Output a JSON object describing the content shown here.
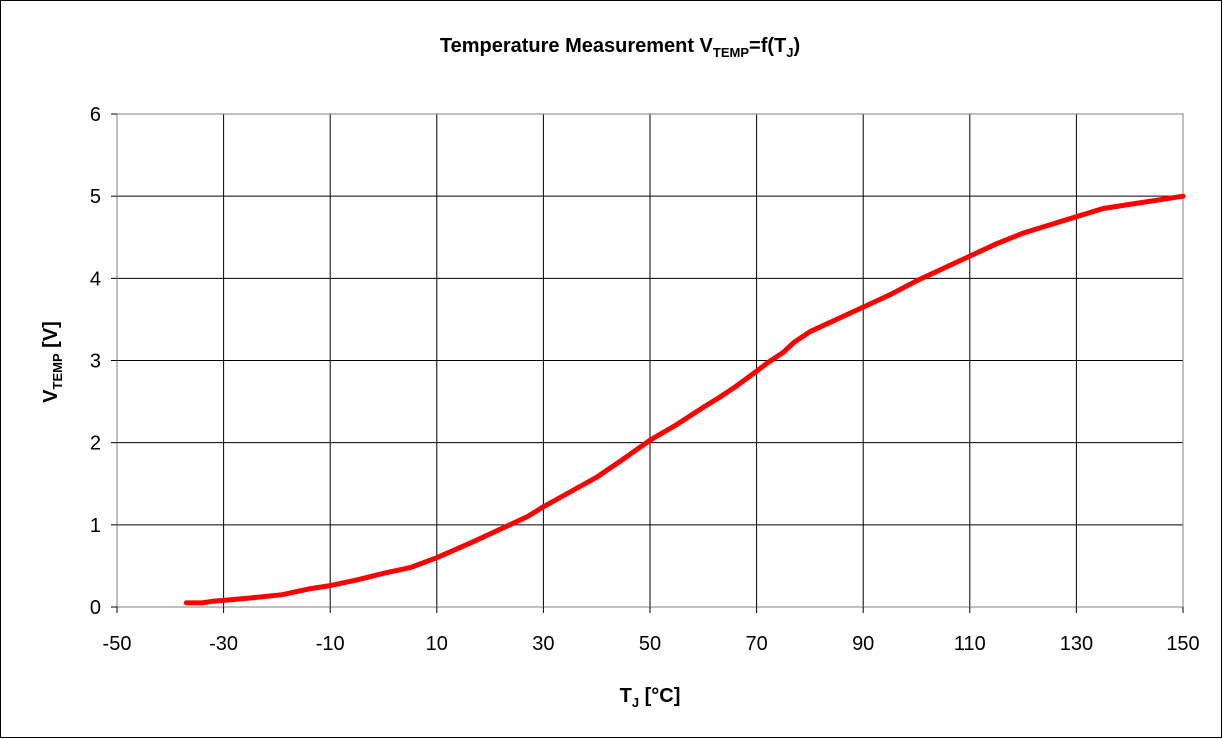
{
  "chart_data": {
    "type": "line",
    "title": {
      "main": "Temperature Measurement V",
      "sub": "TEMP",
      "mid": "=f(T",
      "sub2": "J",
      "end": ")"
    },
    "xlabel": {
      "main": "T",
      "sub": "J",
      "end": " [°C]"
    },
    "ylabel": {
      "main": "V",
      "sub": "TEMP",
      "end": " [V]"
    },
    "xlim": [
      -50,
      150
    ],
    "ylim": [
      0,
      6
    ],
    "x_ticks": [
      "-50",
      "-30",
      "-10",
      "10",
      "30",
      "50",
      "70",
      "90",
      "110",
      "130",
      "150"
    ],
    "x_tick_values": [
      -50,
      -30,
      -10,
      10,
      30,
      50,
      70,
      90,
      110,
      130,
      150
    ],
    "y_ticks": [
      "0",
      "1",
      "2",
      "3",
      "4",
      "5",
      "6"
    ],
    "y_tick_values": [
      0,
      1,
      2,
      3,
      4,
      5,
      6
    ],
    "grid": true,
    "series_color": "#ff0000",
    "series": [
      {
        "x": [
          -37,
          -34,
          -32,
          -30,
          -25,
          -19,
          -14,
          -10,
          -5,
          0,
          5,
          10,
          17,
          23,
          27,
          30,
          35,
          40,
          45,
          50,
          55,
          60,
          63,
          66,
          70,
          72,
          75,
          77,
          80,
          85,
          90,
          95,
          100,
          105,
          110,
          115,
          120,
          125,
          130,
          135,
          140,
          145,
          150
        ],
        "y": [
          0.05,
          0.05,
          0.07,
          0.08,
          0.11,
          0.15,
          0.22,
          0.26,
          0.33,
          0.41,
          0.48,
          0.6,
          0.8,
          0.98,
          1.1,
          1.22,
          1.4,
          1.58,
          1.8,
          2.03,
          2.22,
          2.43,
          2.55,
          2.68,
          2.87,
          2.97,
          3.1,
          3.22,
          3.35,
          3.5,
          3.65,
          3.8,
          3.97,
          4.12,
          4.27,
          4.42,
          4.55,
          4.65,
          4.75,
          4.85,
          4.9,
          4.95,
          5.0
        ]
      }
    ]
  }
}
